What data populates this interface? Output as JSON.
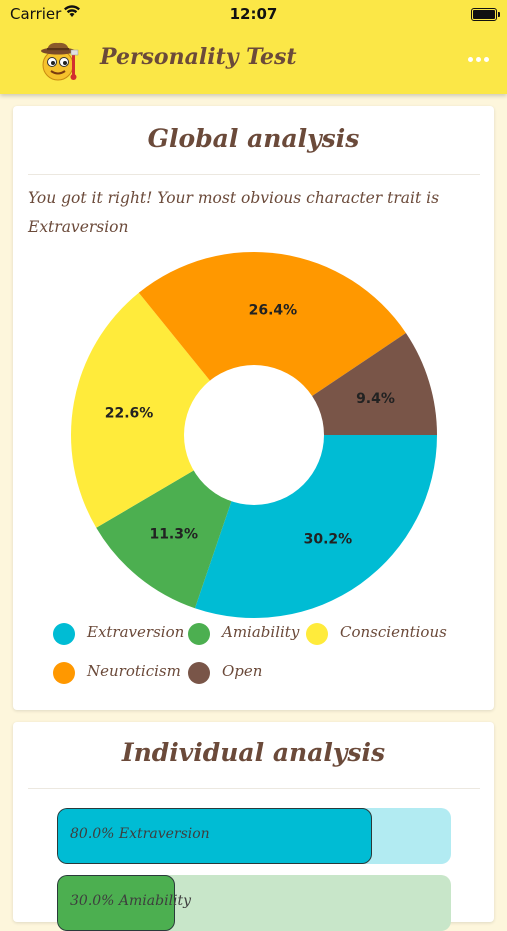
{
  "status_bar": {
    "carrier": "Carrier",
    "time": "12:07"
  },
  "header": {
    "title": "Personality Test",
    "more_icon": "ellipsis-icon"
  },
  "global": {
    "title": "Global analysis",
    "result_text": "You got it right! Your most obvious character trait is Extraversion"
  },
  "chart_data": {
    "type": "pie",
    "donut": true,
    "title": "",
    "categories": [
      "Extraversion",
      "Amiability",
      "Conscientious",
      "Neuroticism",
      "Open"
    ],
    "values": [
      30.2,
      11.3,
      22.6,
      26.4,
      9.4
    ],
    "labels": [
      "30.2%",
      "11.3%",
      "22.6%",
      "26.4%",
      "9.4%"
    ],
    "colors": [
      "#00bcd4",
      "#4caf50",
      "#ffeb3b",
      "#ff9800",
      "#795548"
    ],
    "legend": "bottom"
  },
  "individual": {
    "title": "Individual analysis",
    "bars": [
      {
        "label": "80.0% Extraversion",
        "percent": 80,
        "fill": "#00bcd4",
        "track": "#b2ebf2"
      },
      {
        "label": "30.0% Amiability",
        "percent": 30,
        "fill": "#4caf50",
        "track": "#c8e6c9"
      }
    ]
  }
}
